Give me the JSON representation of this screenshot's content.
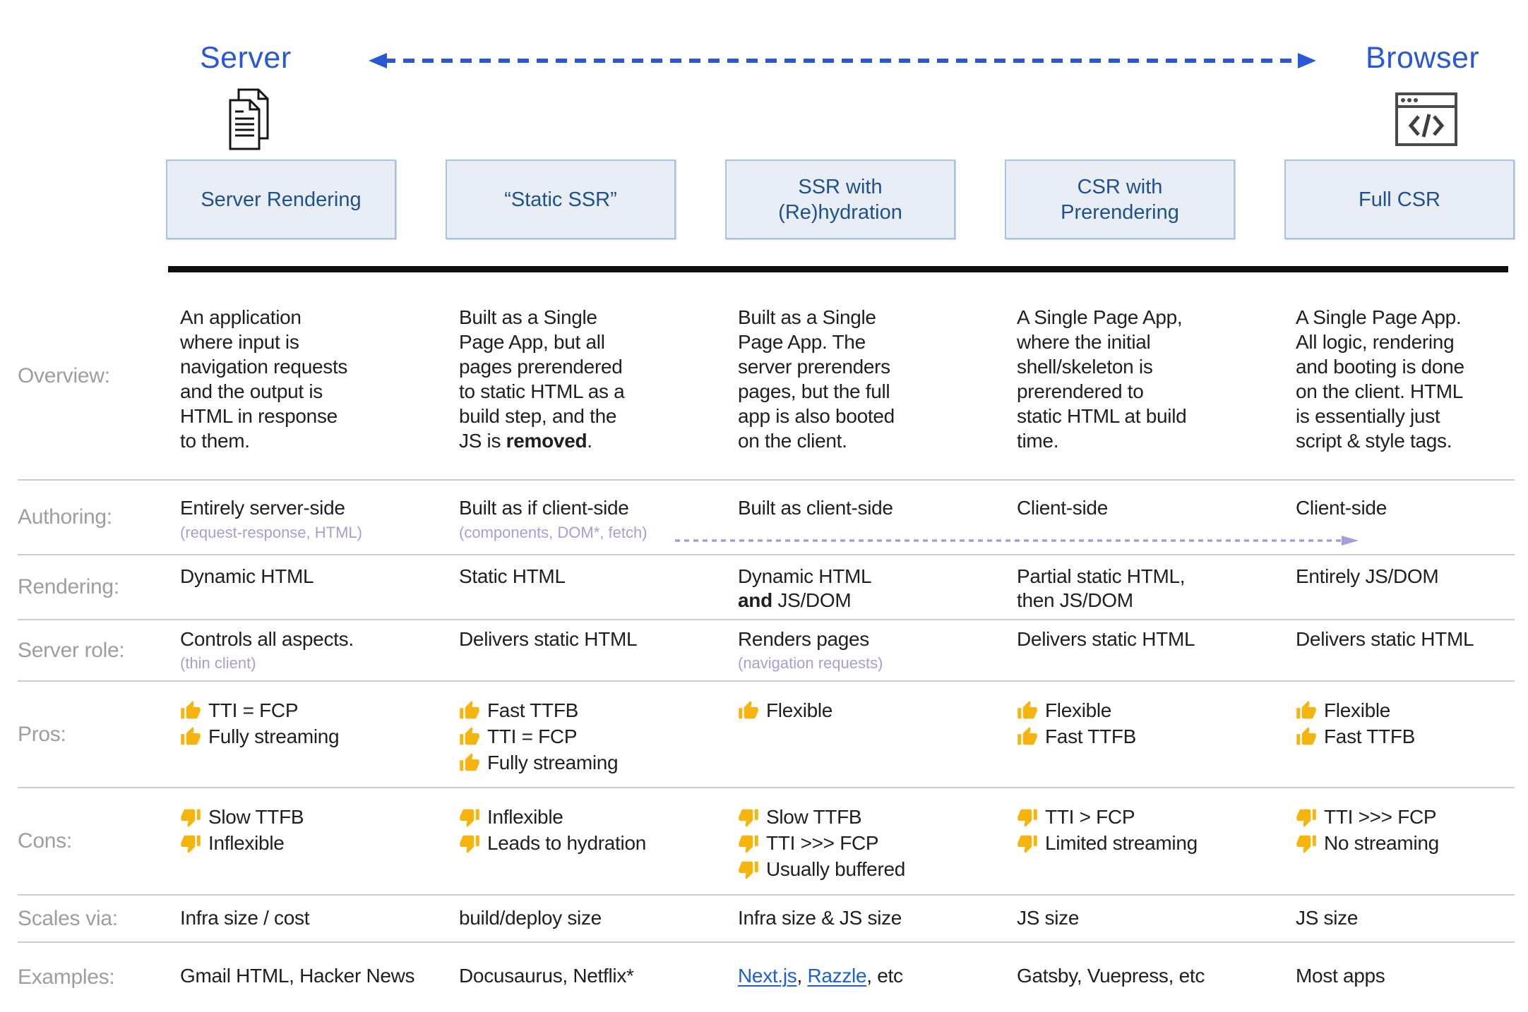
{
  "top": {
    "server_label": "Server",
    "browser_label": "Browser"
  },
  "headers": [
    "Server Rendering",
    "“Static SSR”",
    "SSR with\n(Re)hydration",
    "CSR with\nPrerendering",
    "Full CSR"
  ],
  "rows": {
    "overview": {
      "label": "Overview:",
      "cells": [
        "An application\nwhere input is\nnavigation requests\nand the output is\nHTML in response\nto them.",
        "Built as a Single\nPage App, but all\npages prerendered\nto static HTML as a\nbuild step, and the\nJS is **removed**.",
        "Built as a Single\nPage App. The\nserver prerenders\npages, but the full\napp is also booted\non the client.",
        "A Single Page App,\nwhere the initial\nshell/skeleton is\nprerendered to\nstatic HTML at build\ntime.",
        "A Single Page App.\nAll logic, rendering\nand booting is done\non the client. HTML\nis essentially just\nscript & style tags."
      ]
    },
    "authoring": {
      "label": "Authoring:",
      "cells": [
        "Entirely server-side",
        "Built as if client-side",
        "Built as client-side",
        "Client-side",
        "Client-side"
      ],
      "subs": [
        "(request-response, HTML)",
        "(components, DOM*, fetch)"
      ]
    },
    "rendering": {
      "label": "Rendering:",
      "cells": [
        "Dynamic HTML",
        "Static HTML",
        "Dynamic HTML\n**and** JS/DOM",
        "Partial static HTML,\nthen JS/DOM",
        "Entirely JS/DOM"
      ]
    },
    "server_role": {
      "label": "Server role:",
      "cells": [
        "Controls all aspects.",
        "Delivers static HTML",
        "Renders pages",
        "Delivers static HTML",
        "Delivers static HTML"
      ],
      "subs": {
        "col0": "(thin client)",
        "col2": "(navigation requests)"
      }
    },
    "pros": {
      "label": "Pros:",
      "cells": [
        [
          "TTI = FCP",
          "Fully streaming"
        ],
        [
          "Fast TTFB",
          "TTI = FCP",
          "Fully streaming"
        ],
        [
          "Flexible"
        ],
        [
          "Flexible",
          "Fast TTFB"
        ],
        [
          "Flexible",
          "Fast TTFB"
        ]
      ]
    },
    "cons": {
      "label": "Cons:",
      "cells": [
        [
          "Slow TTFB",
          "Inflexible"
        ],
        [
          "Inflexible",
          "Leads to hydration"
        ],
        [
          "Slow TTFB",
          "TTI >>> FCP",
          "Usually buffered"
        ],
        [
          "TTI > FCP",
          "Limited streaming"
        ],
        [
          "TTI >>> FCP",
          "No streaming"
        ]
      ]
    },
    "scales": {
      "label": "Scales via:",
      "cells": [
        "Infra size / cost",
        "build/deploy size",
        "Infra size & JS size",
        "JS size",
        "JS size"
      ]
    },
    "examples": {
      "label": "Examples:",
      "cells": [
        "Gmail HTML, Hacker News",
        "Docusaurus, Netflix*",
        "Gatsby, Vuepress, etc",
        "Most apps"
      ],
      "links": {
        "link1": "Next.js",
        "sep": ", ",
        "link2": "Razzle",
        "suffix": ", etc"
      }
    }
  },
  "colors": {
    "accent_blue": "#2858d5",
    "header_box_fill": "#e9edf6",
    "header_box_border": "#a9c3e6",
    "header_box_text": "#1d5191",
    "subtext_purple": "#a69ddc",
    "link_blue": "#1b61d1",
    "thumb_yellow": "#f6b40e",
    "black_bar": "#101010"
  }
}
